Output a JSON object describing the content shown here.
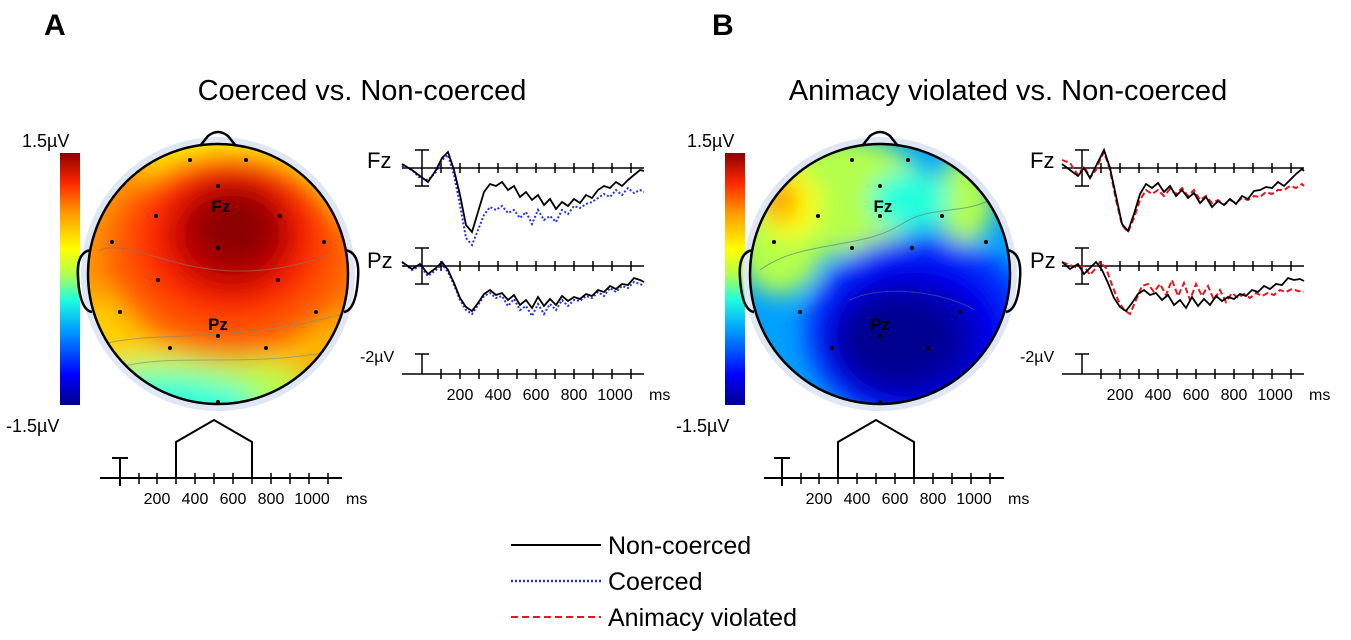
{
  "colors": {
    "non_coerced": "#000000",
    "coerced": "#2233ee",
    "animacy_violated": "#e8141e",
    "colormap": [
      "#00008f",
      "#0000ff",
      "#00a0ff",
      "#22ffdd",
      "#b4ff4c",
      "#ffff00",
      "#ff9b00",
      "#ff2800",
      "#8b0000"
    ]
  },
  "colorbar": {
    "max_label": "1.5µV",
    "min_label": "-1.5µV"
  },
  "waveform_axes": {
    "scale_label": "-2µV",
    "time_ticks": [
      "200",
      "400",
      "600",
      "800",
      "1000"
    ],
    "unit": "ms"
  },
  "panels": [
    {
      "letter": "A",
      "title": "Coerced vs. Non-coerced",
      "electrodes": [
        "Fz",
        "Pz"
      ],
      "window_ticks": [
        "200",
        "400",
        "600",
        "800",
        "1000"
      ],
      "window_unit": "ms",
      "topomap_pattern": "frontal-positive",
      "comparison": "coerced"
    },
    {
      "letter": "B",
      "title": "Animacy violated vs. Non-coerced",
      "electrodes": [
        "Fz",
        "Pz"
      ],
      "window_ticks": [
        "200",
        "400",
        "600",
        "800",
        "1000"
      ],
      "window_unit": "ms",
      "topomap_pattern": "posterior-negative",
      "comparison": "animacy_violated"
    }
  ],
  "legend": [
    {
      "key": "non_coerced",
      "label": "Non-coerced",
      "style": "solid"
    },
    {
      "key": "coerced",
      "label": "Coerced",
      "style": "dotted"
    },
    {
      "key": "animacy_violated",
      "label": "Animacy violated",
      "style": "dashed"
    }
  ]
}
